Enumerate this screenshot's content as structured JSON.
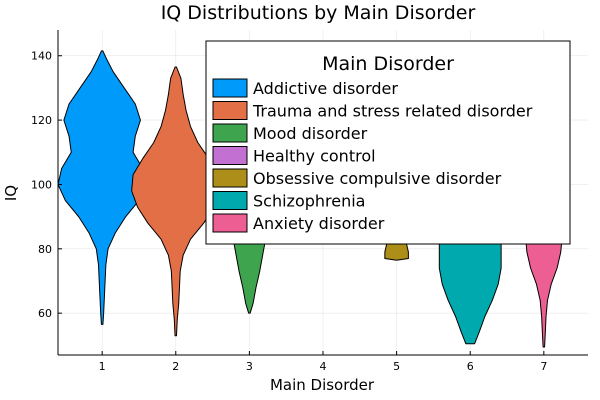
{
  "chart_data": {
    "type": "violin",
    "title": "IQ Distributions by Main Disorder",
    "xlabel": "Main Disorder",
    "ylabel": "IQ",
    "xlim": [
      0.4,
      7.6
    ],
    "ylim": [
      47,
      148
    ],
    "xticks": [
      1,
      2,
      3,
      4,
      5,
      6,
      7
    ],
    "yticks": [
      60,
      80,
      100,
      120,
      140
    ],
    "grid": true,
    "legend": {
      "title": "Main Disorder",
      "placement": "top-right"
    },
    "series": [
      {
        "name": "Addictive disorder",
        "x": 1,
        "color": "#009AFA",
        "profile": [
          [
            56.5,
            0.01
          ],
          [
            60,
            0.02
          ],
          [
            65,
            0.03
          ],
          [
            70,
            0.04
          ],
          [
            75,
            0.05
          ],
          [
            80,
            0.08
          ],
          [
            85,
            0.18
          ],
          [
            90,
            0.32
          ],
          [
            95,
            0.5
          ],
          [
            100,
            0.6
          ],
          [
            105,
            0.55
          ],
          [
            110,
            0.42
          ],
          [
            115,
            0.45
          ],
          [
            120,
            0.52
          ],
          [
            125,
            0.45
          ],
          [
            130,
            0.3
          ],
          [
            135,
            0.15
          ],
          [
            139,
            0.06
          ],
          [
            141.5,
            0.01
          ]
        ]
      },
      {
        "name": "Trauma and stress related disorder",
        "x": 2,
        "color": "#E26F46",
        "profile": [
          [
            53,
            0.01
          ],
          [
            58,
            0.02
          ],
          [
            63,
            0.04
          ],
          [
            68,
            0.05
          ],
          [
            73,
            0.06
          ],
          [
            78,
            0.1
          ],
          [
            83,
            0.2
          ],
          [
            88,
            0.38
          ],
          [
            93,
            0.52
          ],
          [
            98,
            0.6
          ],
          [
            103,
            0.58
          ],
          [
            108,
            0.45
          ],
          [
            113,
            0.3
          ],
          [
            118,
            0.2
          ],
          [
            123,
            0.14
          ],
          [
            128,
            0.1
          ],
          [
            133,
            0.07
          ],
          [
            136.5,
            0.01
          ]
        ]
      },
      {
        "name": "Mood disorder",
        "x": 3,
        "color": "#3EA44E",
        "profile": [
          [
            60,
            0.01
          ],
          [
            63,
            0.05
          ],
          [
            68,
            0.09
          ],
          [
            73,
            0.14
          ],
          [
            78,
            0.18
          ],
          [
            83,
            0.22
          ],
          [
            88,
            0.25
          ],
          [
            93,
            0.25
          ],
          [
            98,
            0.22
          ],
          [
            103,
            0.18
          ],
          [
            110,
            0.12
          ],
          [
            120,
            0.07
          ],
          [
            130,
            0.04
          ],
          [
            138,
            0.02
          ],
          [
            144,
            0.01
          ]
        ]
      },
      {
        "name": "Healthy control",
        "x": 4,
        "color": "#C271D2",
        "profile": []
      },
      {
        "name": "Obsessive compulsive disorder",
        "x": 5,
        "color": "#AC8E18",
        "profile": [
          [
            76.5,
            0.01
          ],
          [
            77,
            0.16
          ],
          [
            79,
            0.16
          ],
          [
            81,
            0.14
          ],
          [
            83,
            0.12
          ],
          [
            85,
            0.1
          ]
        ]
      },
      {
        "name": "Schizophrenia",
        "x": 6,
        "color": "#00A9AD",
        "profile": [
          [
            50.5,
            0.06
          ],
          [
            54,
            0.12
          ],
          [
            59,
            0.2
          ],
          [
            64,
            0.3
          ],
          [
            69,
            0.38
          ],
          [
            74,
            0.42
          ],
          [
            79,
            0.42
          ],
          [
            84,
            0.42
          ],
          [
            85,
            0.42
          ]
        ]
      },
      {
        "name": "Anxiety disorder",
        "x": 7,
        "color": "#ED5E93",
        "profile": [
          [
            49.5,
            0.01
          ],
          [
            54,
            0.02
          ],
          [
            59,
            0.03
          ],
          [
            64,
            0.05
          ],
          [
            69,
            0.1
          ],
          [
            74,
            0.18
          ],
          [
            79,
            0.23
          ],
          [
            84,
            0.25
          ],
          [
            90,
            0.26
          ],
          [
            96,
            0.26
          ],
          [
            100,
            0.24
          ],
          [
            105,
            0.18
          ],
          [
            110,
            0.1
          ],
          [
            113,
            0.04
          ]
        ]
      }
    ]
  }
}
